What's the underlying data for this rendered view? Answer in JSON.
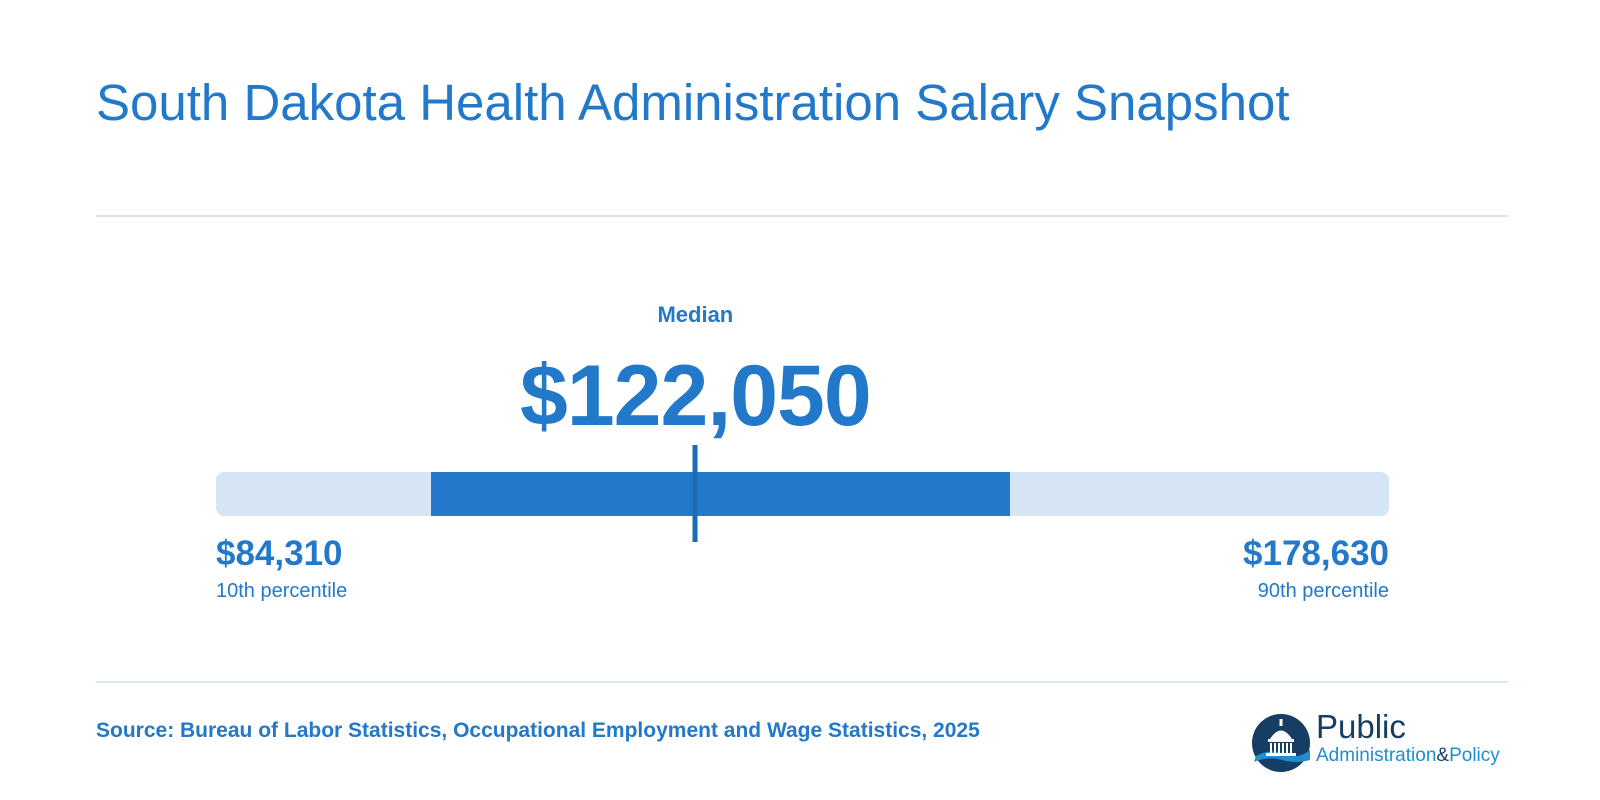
{
  "title": "South Dakota Health Administration Salary Snapshot",
  "chart_data": {
    "type": "range",
    "title": "South Dakota Health Administration Salary Snapshot",
    "percentile_10": 84310,
    "median": 122050,
    "percentile_90": 178630,
    "range_low": 82000,
    "range_high": 180000,
    "labels": {
      "median_label": "Median",
      "median_value": "$122,050",
      "low_value": "$84,310",
      "low_label": "10th percentile",
      "high_value": "$178,630",
      "high_label": "90th percentile"
    },
    "highlight_band": [
      100000,
      148300
    ]
  },
  "source": "Source: Bureau of Labor Statistics, Occupational Employment and Wage Statistics, 2025",
  "logo": {
    "word_1": "Public",
    "word_2a": "Administration",
    "word_2b": "&",
    "word_2c": "Policy",
    "icon": "capitol-dome-icon"
  },
  "colors": {
    "accent": "#2279c9",
    "track": "#d6e5f5",
    "fill": "#2279cc",
    "navy": "#163d64"
  }
}
